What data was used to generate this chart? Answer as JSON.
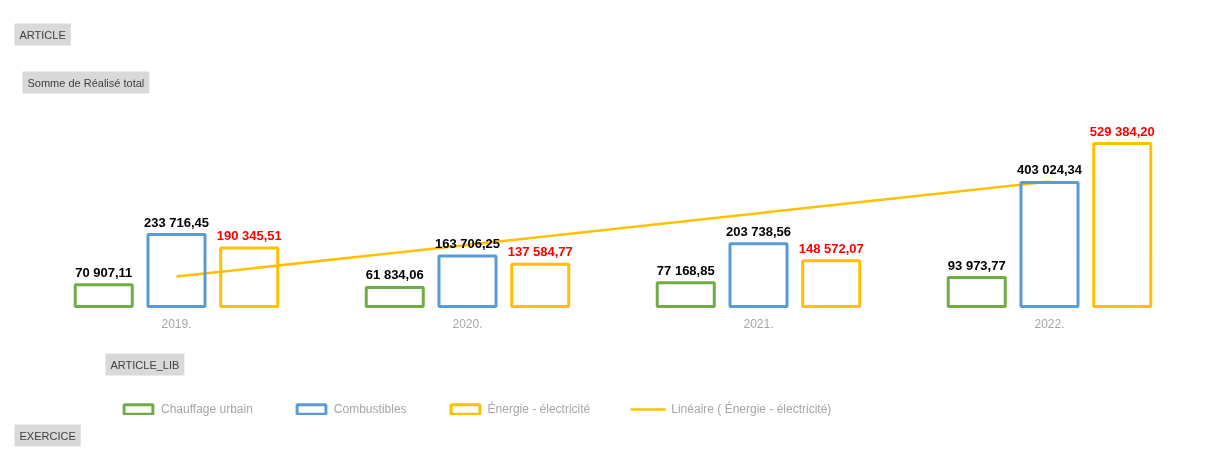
{
  "chart_data": {
    "type": "bar",
    "categories": [
      "2019.",
      "2020.",
      "2021.",
      "2022."
    ],
    "series": [
      {
        "name": "Chauffage urbain",
        "color": "#70ad47",
        "values": [
          70907.11,
          61834.06,
          77168.85,
          93973.77
        ],
        "value_labels": [
          "70 907,11",
          "61 834,06",
          "77 168,85",
          "93 973,77"
        ]
      },
      {
        "name": "Combustibles",
        "color": "#5b9bd5",
        "values": [
          233716.45,
          163706.25,
          203738.56,
          403024.34
        ],
        "value_labels": [
          "233 716,45",
          "163 706,25",
          "203 738,56",
          "403 024,34"
        ]
      },
      {
        "name": "Énergie - électricité",
        "color": "#ffc000",
        "values": [
          190345.51,
          137584.77,
          148572.07,
          529384.2
        ],
        "value_labels": [
          "190 345,51",
          "137 584,77",
          "148 572,07",
          "529 384,20"
        ]
      },
      {
        "name": "Linéaire ( Énergie - électricité)",
        "type": "line",
        "color": "#ffc000",
        "values": [
          97257,
          200067,
          302877,
          405687
        ]
      }
    ],
    "annotations": [
      "ARTICLE",
      "Somme de Réalisé total",
      "ARTICLE_LIB",
      "EXERCICE"
    ],
    "legend": "bottom"
  }
}
